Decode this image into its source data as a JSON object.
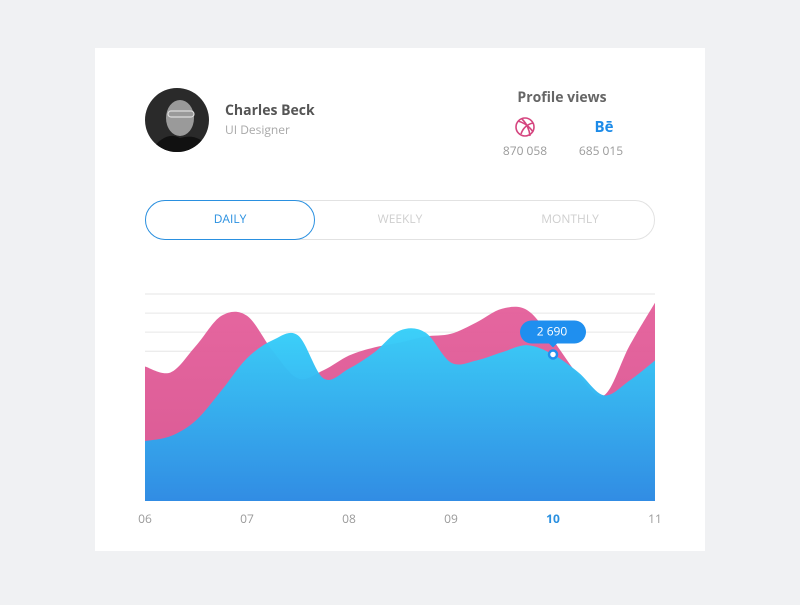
{
  "profile": {
    "name": "Charles Beck",
    "role": "UI Designer"
  },
  "profile_views": {
    "title": "Profile views",
    "sources": [
      {
        "count": "870 058"
      },
      {
        "icon": "Bē",
        "count": "685 015"
      }
    ]
  },
  "tabs": [
    "DAILY",
    "WEEKLY",
    "MONTHLY"
  ],
  "chart_data": {
    "type": "area",
    "x": [
      6,
      6.25,
      6.5,
      6.75,
      7,
      7.25,
      7.5,
      7.75,
      8,
      8.25,
      8.5,
      8.75,
      9,
      9.25,
      9.5,
      9.75,
      10,
      10.25,
      10.5,
      10.75,
      11
    ],
    "series": [
      {
        "name": "Dribbble",
        "color": "#e2609b",
        "values": [
          2470,
          2360,
          2850,
          3400,
          3400,
          2760,
          2250,
          2400,
          2670,
          2820,
          2910,
          3020,
          3070,
          3280,
          3530,
          3500,
          2950,
          2310,
          1940,
          2850,
          3640
        ]
      },
      {
        "name": "Behance",
        "color": "#2f95e8",
        "values": [
          1100,
          1190,
          1480,
          2030,
          2620,
          2950,
          3040,
          2250,
          2430,
          2730,
          3130,
          3090,
          2540,
          2580,
          2730,
          2860,
          2690,
          2360,
          1940,
          2210,
          2580
        ]
      }
    ],
    "xlim": [
      6,
      11
    ],
    "xticks": [
      {
        "value": 6,
        "label": "06"
      },
      {
        "value": 7,
        "label": "07"
      },
      {
        "value": 8,
        "label": "08"
      },
      {
        "value": 9,
        "label": "09"
      },
      {
        "value": 10,
        "label": "10"
      },
      {
        "value": 11,
        "label": "11"
      }
    ],
    "ylim": [
      0,
      3800
    ],
    "ygrid": [
      3800,
      3450,
      3100,
      2750
    ],
    "tooltip": {
      "x": 10,
      "value": 2690,
      "label": "2 690"
    }
  }
}
